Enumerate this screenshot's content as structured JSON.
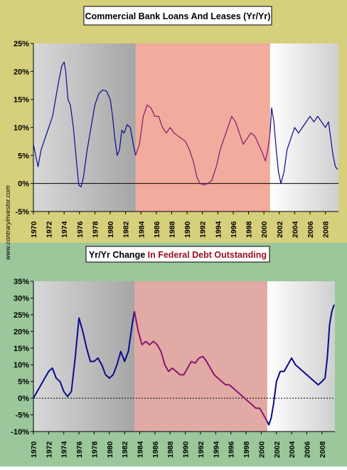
{
  "watermark": "www.contraryinvestor.com",
  "colors": {
    "top_bg": "#d6cf7c",
    "bottom_bg": "#9bc79b",
    "highlight": "#f9a0a8",
    "line_blue": "#0a0a8c",
    "line_purple": "#8a1670",
    "bottom_title_highlight": "#9b0f1f"
  },
  "chart_data": [
    {
      "type": "line",
      "title": "Commercial Bank Loans And Leases (Yr/Yr)",
      "ylim": [
        -5,
        25
      ],
      "yticks": [
        "-5%",
        "0%",
        "5%",
        "10%",
        "15%",
        "20%",
        "25%"
      ],
      "xticks": [
        "1970",
        "1972",
        "1974",
        "1976",
        "1978",
        "1980",
        "1982",
        "1984",
        "1986",
        "1988",
        "1990",
        "1992",
        "1994",
        "1996",
        "1998",
        "2000",
        "2002",
        "2004",
        "2006",
        "2008"
      ],
      "xlim": [
        1970,
        2009.7
      ],
      "highlight_period": [
        1983.3,
        2000.8
      ],
      "zero_line": true,
      "series": [
        {
          "values": [
            [
              1970.0,
              7
            ],
            [
              1970.3,
              5
            ],
            [
              1970.6,
              3
            ],
            [
              1971.0,
              6
            ],
            [
              1971.5,
              8
            ],
            [
              1972.0,
              10
            ],
            [
              1972.5,
              12
            ],
            [
              1973.0,
              16
            ],
            [
              1973.4,
              19
            ],
            [
              1973.7,
              21
            ],
            [
              1974.0,
              21.7
            ],
            [
              1974.2,
              20
            ],
            [
              1974.5,
              15
            ],
            [
              1974.8,
              14
            ],
            [
              1975.2,
              10
            ],
            [
              1975.6,
              4
            ],
            [
              1975.9,
              -0.3
            ],
            [
              1976.2,
              -0.6
            ],
            [
              1976.5,
              1
            ],
            [
              1977.0,
              6
            ],
            [
              1977.5,
              10
            ],
            [
              1978.0,
              14
            ],
            [
              1978.5,
              16
            ],
            [
              1979.0,
              16.7
            ],
            [
              1979.5,
              16.5
            ],
            [
              1980.0,
              15
            ],
            [
              1980.3,
              12
            ],
            [
              1980.6,
              8
            ],
            [
              1980.9,
              5
            ],
            [
              1981.2,
              6
            ],
            [
              1981.5,
              9.5
            ],
            [
              1981.8,
              9
            ],
            [
              1982.2,
              10.5
            ],
            [
              1982.6,
              10
            ],
            [
              1983.0,
              7
            ],
            [
              1983.3,
              5
            ]
          ]
        },
        {
          "values": [
            [
              1983.3,
              5
            ],
            [
              1983.8,
              7
            ],
            [
              1984.3,
              12
            ],
            [
              1984.8,
              14
            ],
            [
              1985.3,
              13.5
            ],
            [
              1985.8,
              12
            ],
            [
              1986.3,
              12
            ],
            [
              1986.8,
              10
            ],
            [
              1987.3,
              9
            ],
            [
              1987.8,
              10
            ],
            [
              1988.3,
              9
            ],
            [
              1988.8,
              8.5
            ],
            [
              1989.3,
              8
            ],
            [
              1989.8,
              7.5
            ],
            [
              1990.3,
              6
            ],
            [
              1990.8,
              4
            ],
            [
              1991.3,
              1
            ],
            [
              1991.7,
              0
            ],
            [
              1992.2,
              -0.3
            ],
            [
              1992.7,
              0
            ],
            [
              1993.2,
              0.5
            ],
            [
              1993.8,
              3
            ],
            [
              1994.3,
              6
            ],
            [
              1994.8,
              8
            ],
            [
              1995.3,
              10
            ],
            [
              1995.8,
              12
            ],
            [
              1996.3,
              11
            ],
            [
              1996.8,
              9
            ],
            [
              1997.3,
              7
            ],
            [
              1997.8,
              8
            ],
            [
              1998.3,
              9
            ],
            [
              1998.8,
              8.5
            ],
            [
              1999.3,
              7
            ],
            [
              1999.8,
              5.5
            ],
            [
              2000.2,
              4
            ],
            [
              2000.5,
              6
            ],
            [
              2000.8,
              9
            ]
          ]
        },
        {
          "values": [
            [
              2000.8,
              9
            ],
            [
              2001.0,
              13.5
            ],
            [
              2001.3,
              11
            ],
            [
              2001.6,
              6
            ],
            [
              2001.9,
              2
            ],
            [
              2002.2,
              0
            ],
            [
              2002.6,
              2
            ],
            [
              2003.0,
              6
            ],
            [
              2003.5,
              8
            ],
            [
              2004.0,
              10
            ],
            [
              2004.5,
              9
            ],
            [
              2005.0,
              10
            ],
            [
              2005.5,
              11
            ],
            [
              2006.0,
              12
            ],
            [
              2006.5,
              11
            ],
            [
              2007.0,
              12
            ],
            [
              2007.5,
              11
            ],
            [
              2008.0,
              10
            ],
            [
              2008.4,
              11
            ],
            [
              2008.7,
              8
            ],
            [
              2009.0,
              5
            ],
            [
              2009.3,
              3
            ],
            [
              2009.6,
              2.5
            ]
          ]
        }
      ]
    },
    {
      "type": "line",
      "title_parts": [
        "Yr/Yr Change ",
        "In Federal Debt Outstanding"
      ],
      "ylim": [
        -10,
        35
      ],
      "yticks": [
        "-10%",
        "-5%",
        "0%",
        "5%",
        "10%",
        "15%",
        "20%",
        "25%",
        "30%",
        "35%"
      ],
      "xticks": [
        "1970",
        "1972",
        "1974",
        "1976",
        "1978",
        "1980",
        "1982",
        "1984",
        "1986",
        "1988",
        "1990",
        "1992",
        "1994",
        "1996",
        "1998",
        "2000",
        "2002",
        "2004",
        "2006",
        "2008"
      ],
      "xlim": [
        1970,
        2009.7
      ],
      "highlight_period": [
        1983.3,
        2000.8
      ],
      "zero_line": true,
      "series": [
        {
          "values": [
            [
              1970.0,
              0
            ],
            [
              1970.5,
              2
            ],
            [
              1971.0,
              4
            ],
            [
              1971.5,
              6
            ],
            [
              1972.0,
              8
            ],
            [
              1972.5,
              9
            ],
            [
              1973.0,
              6
            ],
            [
              1973.5,
              5
            ],
            [
              1974.0,
              2
            ],
            [
              1974.5,
              0.5
            ],
            [
              1975.0,
              2
            ],
            [
              1975.5,
              12
            ],
            [
              1976.0,
              24
            ],
            [
              1976.5,
              20
            ],
            [
              1977.0,
              15
            ],
            [
              1977.5,
              11
            ],
            [
              1978.0,
              11
            ],
            [
              1978.5,
              12
            ],
            [
              1979.0,
              10
            ],
            [
              1979.5,
              7
            ],
            [
              1980.0,
              6
            ],
            [
              1980.5,
              7
            ],
            [
              1981.0,
              10
            ],
            [
              1981.5,
              14
            ],
            [
              1982.0,
              11
            ],
            [
              1982.5,
              14
            ],
            [
              1983.0,
              22
            ],
            [
              1983.3,
              26
            ]
          ]
        },
        {
          "values": [
            [
              1983.3,
              26
            ],
            [
              1983.8,
              20
            ],
            [
              1984.3,
              16
            ],
            [
              1984.8,
              17
            ],
            [
              1985.3,
              16
            ],
            [
              1985.8,
              17
            ],
            [
              1986.3,
              16
            ],
            [
              1986.8,
              14
            ],
            [
              1987.3,
              10
            ],
            [
              1987.8,
              8
            ],
            [
              1988.3,
              9
            ],
            [
              1988.8,
              8
            ],
            [
              1989.3,
              7
            ],
            [
              1989.8,
              7
            ],
            [
              1990.3,
              9
            ],
            [
              1990.8,
              11
            ],
            [
              1991.3,
              10.5
            ],
            [
              1991.8,
              12
            ],
            [
              1992.3,
              12.5
            ],
            [
              1992.8,
              11
            ],
            [
              1993.3,
              9
            ],
            [
              1993.8,
              7
            ],
            [
              1994.3,
              6
            ],
            [
              1994.8,
              5
            ],
            [
              1995.3,
              4
            ],
            [
              1995.8,
              4
            ],
            [
              1996.3,
              3
            ],
            [
              1996.8,
              2
            ],
            [
              1997.3,
              1
            ],
            [
              1997.8,
              0
            ],
            [
              1998.3,
              -1
            ],
            [
              1998.8,
              -2
            ],
            [
              1999.3,
              -3
            ],
            [
              1999.8,
              -3
            ],
            [
              2000.3,
              -5
            ],
            [
              2000.8,
              -7
            ]
          ]
        },
        {
          "values": [
            [
              2000.8,
              -7
            ],
            [
              2001.0,
              -8
            ],
            [
              2001.3,
              -6
            ],
            [
              2001.6,
              -2
            ],
            [
              2002.0,
              5
            ],
            [
              2002.5,
              8
            ],
            [
              2003.0,
              8
            ],
            [
              2003.5,
              10
            ],
            [
              2004.0,
              12
            ],
            [
              2004.5,
              10
            ],
            [
              2005.0,
              9
            ],
            [
              2005.5,
              8
            ],
            [
              2006.0,
              7
            ],
            [
              2006.5,
              6
            ],
            [
              2007.0,
              5
            ],
            [
              2007.5,
              4
            ],
            [
              2008.0,
              5
            ],
            [
              2008.4,
              6
            ],
            [
              2008.7,
              12
            ],
            [
              2009.0,
              22
            ],
            [
              2009.3,
              26
            ],
            [
              2009.6,
              28
            ]
          ]
        }
      ]
    }
  ]
}
